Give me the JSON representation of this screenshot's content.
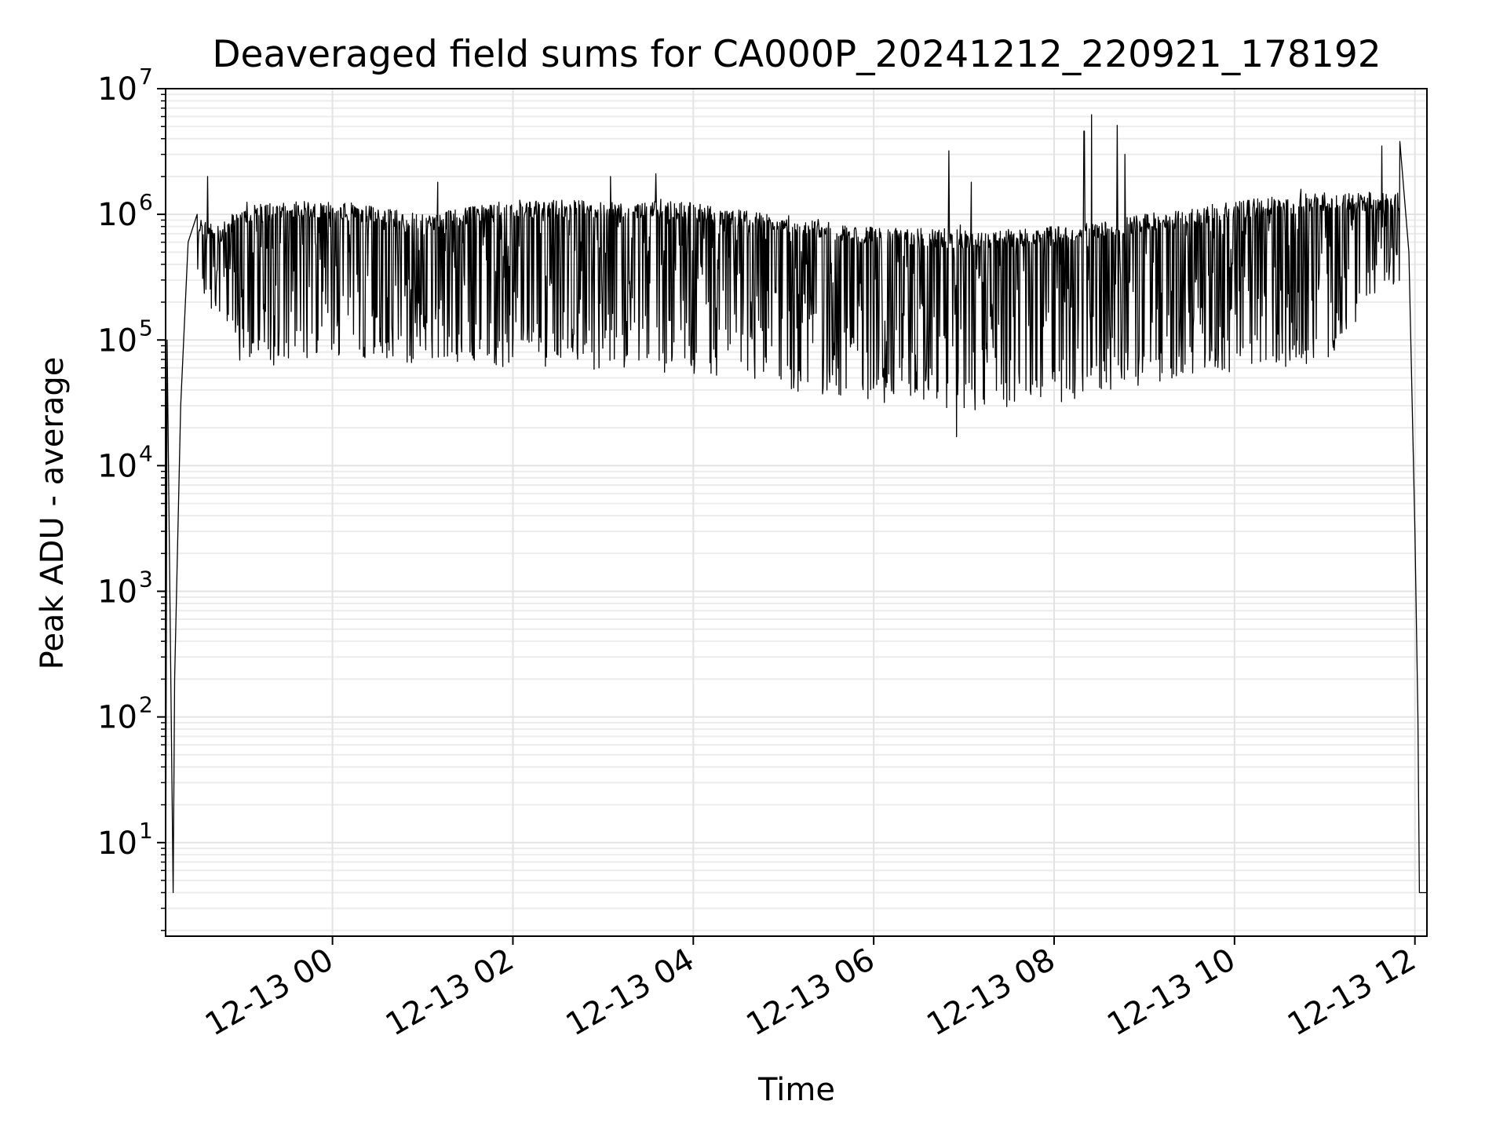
{
  "chart_data": {
    "type": "line",
    "title": "Deaveraged field sums for CA000P_20241212_220921_178192",
    "xlabel": "Time",
    "ylabel": "Peak ADU - average",
    "yscale": "log",
    "ylim": [
      1.8,
      10000000
    ],
    "xlim": [
      "2024-12-12 22:09",
      "2024-12-13 12:08"
    ],
    "x_ticks": [
      "12-13 00",
      "12-13 02",
      "12-13 04",
      "12-13 06",
      "12-13 08",
      "12-13 10",
      "12-13 12"
    ],
    "y_ticks": [
      {
        "base": "10",
        "exp": "1",
        "value": 10
      },
      {
        "base": "10",
        "exp": "2",
        "value": 100
      },
      {
        "base": "10",
        "exp": "3",
        "value": 1000
      },
      {
        "base": "10",
        "exp": "4",
        "value": 10000
      },
      {
        "base": "10",
        "exp": "5",
        "value": 100000
      },
      {
        "base": "10",
        "exp": "6",
        "value": 1000000
      },
      {
        "base": "10",
        "exp": "7",
        "value": 10000000
      }
    ],
    "grid": true,
    "line_color": "#000000",
    "series": [
      {
        "points": [
          [
            "2024-12-12 22:09",
            2
          ],
          [
            "2024-12-12 22:10",
            100000
          ],
          [
            "2024-12-12 22:14",
            4
          ],
          [
            "2024-12-12 22:15",
            200
          ],
          [
            "2024-12-12 22:19",
            30000
          ],
          [
            "2024-12-12 22:24",
            600000
          ],
          [
            "2024-12-12 22:30",
            1000000
          ],
          [
            "2024-12-12 22:45",
            800000
          ],
          [
            "2024-12-12 23:00",
            1200000
          ],
          [
            "2024-12-13 00:00",
            1300000
          ],
          [
            "2024-12-13 01:00",
            1000000
          ],
          [
            "2024-12-13 02:00",
            1300000
          ],
          [
            "2024-12-13 03:00",
            1300000
          ],
          [
            "2024-12-13 04:00",
            1250000
          ],
          [
            "2024-12-13 05:00",
            1000000
          ],
          [
            "2024-12-13 06:00",
            800000
          ],
          [
            "2024-12-13 07:00",
            750000
          ],
          [
            "2024-12-13 08:00",
            800000
          ],
          [
            "2024-12-13 09:00",
            1000000
          ],
          [
            "2024-12-13 10:00",
            1300000
          ],
          [
            "2024-12-13 11:00",
            1500000
          ],
          [
            "2024-12-13 11:50",
            1500000
          ],
          [
            "2024-12-13 11:56",
            500000
          ],
          [
            "2024-12-13 12:00",
            3000
          ],
          [
            "2024-12-13 12:02",
            100
          ],
          [
            "2024-12-13 12:03",
            4
          ],
          [
            "2024-12-13 12:08",
            4
          ]
        ],
        "dip_floor": [
          [
            "2024-12-12 22:30",
            300000
          ],
          [
            "2024-12-12 23:00",
            70000
          ],
          [
            "2024-12-13 01:00",
            70000
          ],
          [
            "2024-12-13 03:00",
            65000
          ],
          [
            "2024-12-13 04:00",
            60000
          ],
          [
            "2024-12-13 05:00",
            45000
          ],
          [
            "2024-12-13 06:00",
            35000
          ],
          [
            "2024-12-13 07:00",
            30000
          ],
          [
            "2024-12-13 08:00",
            35000
          ],
          [
            "2024-12-13 09:00",
            50000
          ],
          [
            "2024-12-13 10:00",
            60000
          ],
          [
            "2024-12-13 11:00",
            70000
          ],
          [
            "2024-12-13 11:40",
            300000
          ]
        ],
        "spikes": [
          [
            "2024-12-12 22:37",
            2000000
          ],
          [
            "2024-12-13 01:10",
            1800000
          ],
          [
            "2024-12-13 03:05",
            2000000
          ],
          [
            "2024-12-13 03:35",
            2100000
          ],
          [
            "2024-12-13 06:50",
            3200000
          ],
          [
            "2024-12-13 07:05",
            1800000
          ],
          [
            "2024-12-13 08:20",
            4600000
          ],
          [
            "2024-12-13 08:25",
            6200000
          ],
          [
            "2024-12-13 08:42",
            5100000
          ],
          [
            "2024-12-13 08:47",
            3000000
          ],
          [
            "2024-12-13 11:38",
            3500000
          ],
          [
            "2024-12-13 11:50",
            3800000
          ]
        ],
        "minimum": [
          "2024-12-13 06:55",
          17000
        ]
      }
    ]
  }
}
